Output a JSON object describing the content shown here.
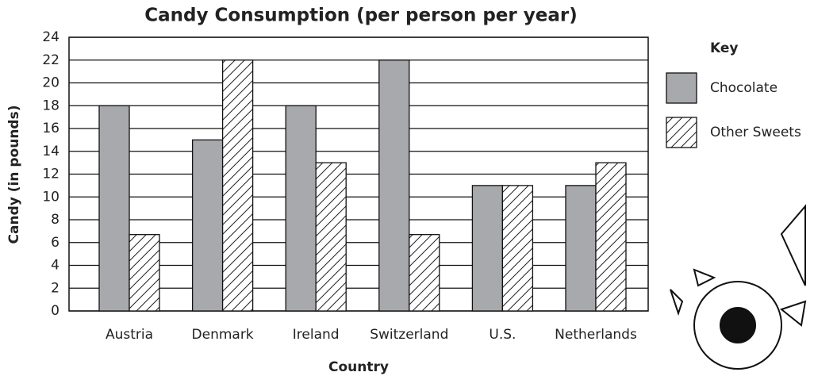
{
  "chart_data": {
    "type": "bar",
    "title": "Candy Consumption (per person per year)",
    "x_label": "Country",
    "y_label": "Candy (in pounds)",
    "legend_title": "Key",
    "categories": [
      "Austria",
      "Denmark",
      "Ireland",
      "Switzerland",
      "U.S.",
      "Netherlands"
    ],
    "series": [
      {
        "name": "Chocolate",
        "color": "#a7a9ac",
        "values": [
          18,
          15,
          18,
          22,
          11,
          11
        ]
      },
      {
        "name": "Other Sweets",
        "color": "#ffffff",
        "pattern": "hatch",
        "values": [
          6.7,
          22,
          13,
          6.7,
          11,
          13
        ]
      }
    ],
    "ylim": [
      0,
      24
    ],
    "yticks": [
      0,
      2,
      4,
      6,
      8,
      10,
      12,
      14,
      16,
      18,
      20,
      22,
      24
    ],
    "grid": true
  }
}
